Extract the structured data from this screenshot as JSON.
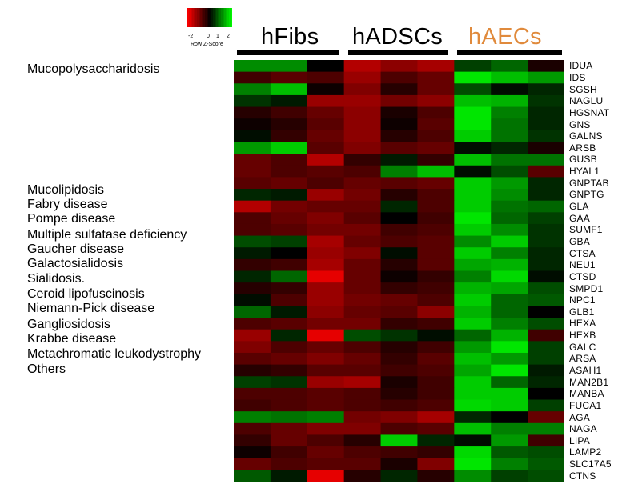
{
  "chart_data": {
    "type": "heatmap",
    "color_key": {
      "title": "Row Z-Score",
      "ticks": [
        "-2",
        "0",
        "1",
        "2"
      ],
      "range": [
        -2,
        2
      ],
      "low_color": "#ff0000",
      "mid_color": "#000000",
      "high_color": "#00ff00"
    },
    "groups": [
      {
        "name": "hFibs",
        "color": "#000000",
        "columns": 3
      },
      {
        "name": "hADSCs",
        "color": "#000000",
        "columns": 3
      },
      {
        "name": "hAECs",
        "color": "#e08a3c",
        "columns": 3
      }
    ],
    "disease_labels": [
      "Mucopolysaccharidosis",
      "Mucolipidosis",
      "Fabry disease",
      "Pompe disease",
      "Multiple sulfatase deficiency",
      "Gaucher disease",
      "Galactosialidosis",
      "Sialidosis.",
      "Ceroid lipofuscinosis",
      "Niemann-Pick disease",
      "Gangliosidosis",
      "Krabbe disease",
      "Metachromatic leukodystrophy",
      "Others"
    ],
    "genes": [
      "IDUA",
      "IDS",
      "SGSH",
      "NAGLU",
      "HGSNAT",
      "GNS",
      "GALNS",
      "ARSB",
      "GUSB",
      "HYAL1",
      "GNPTAB",
      "GNPTG",
      "GLA",
      "GAA",
      "SUMF1",
      "GBA",
      "CTSA",
      "NEU1",
      "CTSD",
      "SMPD1",
      "NPC1",
      "GLB1",
      "HEXA",
      "HEXB",
      "GALC",
      "ARSA",
      "ASAH1",
      "MAN2B1",
      "MANBA",
      "FUCA1",
      "AGA",
      "NAGA",
      "LIPA",
      "LAMP2",
      "SLC17A5",
      "CTNS"
    ],
    "z_scores": [
      [
        1.1,
        1.1,
        0.0,
        -1.4,
        -1.1,
        -1.3,
        0.5,
        0.8,
        -0.2
      ],
      [
        -0.5,
        -0.7,
        -0.6,
        -1.2,
        -0.6,
        -0.8,
        1.8,
        1.5,
        1.2
      ],
      [
        1.0,
        1.5,
        -0.1,
        -1.0,
        -0.3,
        -0.8,
        0.6,
        0.1,
        0.3
      ],
      [
        0.4,
        0.2,
        -1.2,
        -1.2,
        -0.9,
        -1.1,
        1.5,
        1.4,
        0.4
      ],
      [
        -0.3,
        -0.5,
        -0.8,
        -1.1,
        -0.2,
        -0.6,
        1.8,
        1.0,
        0.3
      ],
      [
        -0.1,
        -0.3,
        -0.7,
        -1.1,
        -0.1,
        -0.7,
        1.8,
        0.9,
        0.3
      ],
      [
        0.1,
        -0.4,
        -0.8,
        -1.1,
        -0.3,
        -0.6,
        1.6,
        0.9,
        0.4
      ],
      [
        1.2,
        1.6,
        -0.7,
        -1.0,
        -0.7,
        -0.8,
        0.1,
        0.3,
        -0.2
      ],
      [
        -0.8,
        -0.6,
        -1.4,
        -0.4,
        0.2,
        -0.4,
        1.5,
        0.9,
        0.9
      ],
      [
        -0.8,
        -0.6,
        -0.7,
        -0.6,
        1.0,
        1.5,
        0.1,
        0.6,
        -0.7
      ],
      [
        -0.7,
        -0.8,
        -0.6,
        -0.8,
        -0.7,
        -0.8,
        1.6,
        1.2,
        0.3
      ],
      [
        0.3,
        0.2,
        -1.2,
        -0.9,
        -0.3,
        -0.6,
        1.6,
        1.1,
        0.3
      ],
      [
        -1.4,
        -0.9,
        -0.8,
        -0.8,
        0.3,
        -0.6,
        1.6,
        0.9,
        0.8
      ],
      [
        -0.6,
        -0.8,
        -1.0,
        -0.7,
        0.0,
        -0.5,
        1.8,
        0.8,
        0.5
      ],
      [
        -0.6,
        -0.7,
        -0.9,
        -0.9,
        -0.5,
        -0.6,
        1.6,
        1.1,
        0.4
      ],
      [
        0.6,
        0.5,
        -1.3,
        -0.8,
        -0.6,
        -0.7,
        1.1,
        1.6,
        0.4
      ],
      [
        0.2,
        0.0,
        -1.2,
        -1.0,
        0.1,
        -0.7,
        1.6,
        1.0,
        0.3
      ],
      [
        -0.4,
        -0.5,
        -1.3,
        -0.8,
        -0.3,
        -0.7,
        1.3,
        1.4,
        0.3
      ],
      [
        0.3,
        0.8,
        -1.8,
        -0.8,
        -0.1,
        -0.4,
        1.0,
        1.7,
        0.1
      ],
      [
        -0.3,
        -0.4,
        -1.2,
        -0.8,
        -0.4,
        -0.5,
        1.4,
        1.3,
        0.6
      ],
      [
        0.1,
        -0.6,
        -1.2,
        -0.9,
        -0.8,
        -0.6,
        1.6,
        0.8,
        0.7
      ],
      [
        0.8,
        0.2,
        -1.1,
        -0.8,
        -0.7,
        -1.1,
        1.4,
        0.8,
        0.0
      ],
      [
        -0.6,
        -0.7,
        -0.9,
        -0.9,
        -0.4,
        -0.5,
        1.6,
        1.0,
        0.6
      ],
      [
        -1.2,
        0.3,
        -1.8,
        0.6,
        0.4,
        0.1,
        0.8,
        1.4,
        -0.5
      ],
      [
        -1.0,
        -0.6,
        -0.8,
        -0.6,
        -0.3,
        -0.5,
        1.2,
        1.8,
        0.5
      ],
      [
        -0.7,
        -0.8,
        -1.0,
        -0.8,
        -0.4,
        -0.7,
        1.5,
        1.2,
        0.5
      ],
      [
        -0.3,
        -0.4,
        -0.7,
        -0.7,
        -0.5,
        -0.6,
        1.3,
        1.8,
        0.2
      ],
      [
        0.5,
        0.4,
        -1.2,
        -1.3,
        -0.2,
        -0.5,
        1.6,
        0.8,
        0.3
      ],
      [
        -0.6,
        -0.6,
        -0.7,
        -0.6,
        -0.3,
        -0.5,
        1.6,
        1.6,
        0.0
      ],
      [
        -0.5,
        -0.6,
        -0.7,
        -0.6,
        -0.5,
        -0.6,
        1.7,
        1.6,
        0.5
      ],
      [
        1.0,
        0.9,
        1.0,
        -0.9,
        -1.0,
        -1.3,
        0.3,
        0.0,
        -0.8
      ],
      [
        -0.6,
        -0.8,
        -1.0,
        -1.0,
        -0.6,
        -0.7,
        1.5,
        1.0,
        1.0
      ],
      [
        -0.4,
        -0.8,
        -0.6,
        -0.3,
        1.6,
        0.3,
        0.1,
        1.2,
        -0.5
      ],
      [
        -0.1,
        -0.5,
        -0.8,
        -0.6,
        -0.5,
        -0.4,
        1.7,
        0.7,
        0.6
      ],
      [
        -0.8,
        -0.6,
        -0.7,
        -0.7,
        -0.2,
        -1.0,
        1.8,
        1.0,
        0.7
      ],
      [
        0.7,
        0.2,
        -1.8,
        -0.3,
        0.3,
        -0.3,
        1.1,
        0.5,
        0.6
      ]
    ]
  }
}
